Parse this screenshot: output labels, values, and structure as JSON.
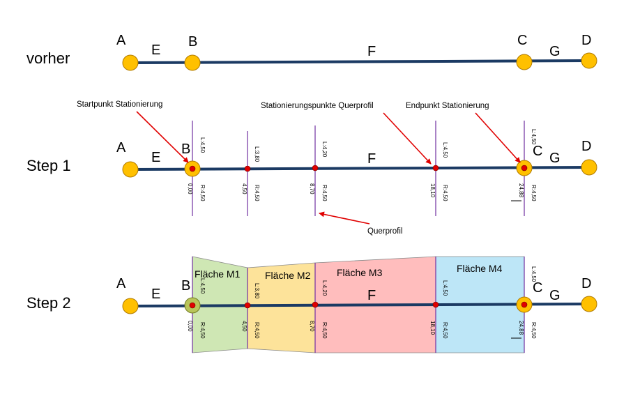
{
  "rows": {
    "before": "vorher",
    "step1": "Step 1",
    "step2": "Step 2"
  },
  "nodes": {
    "a": "A",
    "b": "B",
    "c": "C",
    "d": "D"
  },
  "edges": {
    "e": "E",
    "f": "F",
    "g": "G"
  },
  "callouts": {
    "start": "Startpunkt Stationierung",
    "points": "Stationierungspunkte  Querprofil",
    "end": "Endpunkt Stationierung",
    "cross_section": "Querprofil"
  },
  "stations": [
    {
      "station": "0,00",
      "left": "L:4,50",
      "right": "R:4,50"
    },
    {
      "station": "4,50",
      "left": "L:3,80",
      "right": "R:4,50"
    },
    {
      "station": "8,70",
      "left": "L:4,20",
      "right": "R:4,50"
    },
    {
      "station": "18,10",
      "left": "L:4,50",
      "right": "R:4,50"
    },
    {
      "station": "24,88",
      "left": "L:4,50",
      "right": "R:4,50"
    }
  ],
  "areas": [
    {
      "label": "Fläche M1",
      "color": "#cfe7b4"
    },
    {
      "label": "Fläche M2",
      "color": "#fde39a"
    },
    {
      "label": "Fläche M3",
      "color": "#ffbdbd"
    },
    {
      "label": "Fläche M4",
      "color": "#bde6f7"
    }
  ],
  "colors": {
    "line": "#1b3a63",
    "node": "#ffc000",
    "node_stroke": "#b07a00",
    "point": "#e00000",
    "profile": "#7030a0",
    "arrow": "#e00000"
  }
}
